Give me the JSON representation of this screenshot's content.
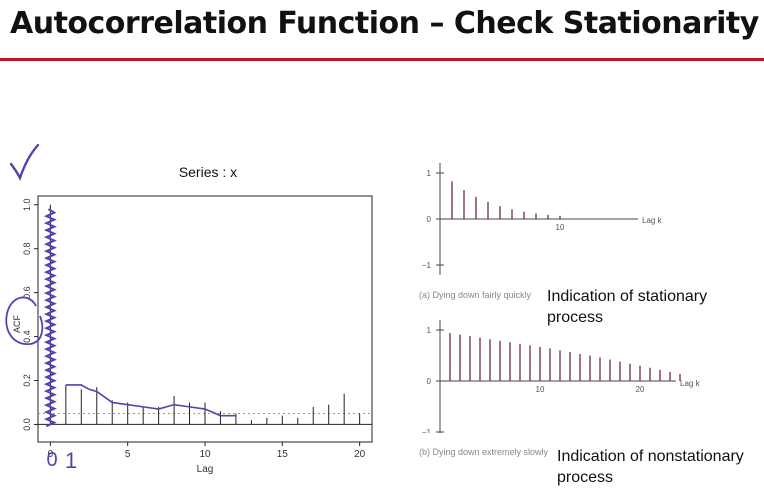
{
  "slide": {
    "title": "Autocorrelation Function – Check Stationarity",
    "accent_color": "#b5172e"
  },
  "annotations": {
    "pen_color": "#5a3fb0",
    "check_mark": "check-icon",
    "zero_label": "0",
    "one_label": "1"
  },
  "chart_data": [
    {
      "type": "bar",
      "title": "Series : x",
      "xlabel": "Lag",
      "ylabel": "ACF",
      "xlim": [
        -0.8,
        20.8
      ],
      "ylim": [
        -0.08,
        1.04
      ],
      "xticks": [
        "0",
        "5",
        "10",
        "15",
        "20"
      ],
      "yticks": [
        "0.0",
        "0.2",
        "0.4",
        "0.6",
        "0.8",
        "1.0"
      ],
      "x": [
        0,
        1,
        2,
        3,
        4,
        5,
        6,
        7,
        8,
        9,
        10,
        11,
        12,
        13,
        14,
        15,
        16,
        17,
        18,
        19,
        20
      ],
      "values": [
        1.0,
        0.18,
        0.16,
        0.17,
        0.11,
        0.1,
        0.08,
        0.08,
        0.13,
        0.1,
        0.1,
        0.06,
        0.05,
        0.02,
        0.03,
        0.04,
        0.03,
        0.08,
        0.09,
        0.14,
        0.05
      ],
      "confidence_band": 0.05,
      "grid": false
    },
    {
      "type": "bar",
      "caption": "(a) Dying down fairly quickly",
      "note": "Indication of stationary process",
      "xlabel": "Lag k",
      "yticks": [
        "1",
        "0",
        "−1"
      ],
      "xticks": [
        "10"
      ],
      "x": [
        1,
        2,
        3,
        4,
        5,
        6,
        7,
        8,
        9,
        10
      ],
      "values": [
        0.82,
        0.63,
        0.48,
        0.37,
        0.28,
        0.21,
        0.16,
        0.12,
        0.09,
        0.07
      ]
    },
    {
      "type": "bar",
      "caption": "(b) Dying down extremely slowly",
      "note": "Indication of nonstationary process",
      "xlabel": "Lag k",
      "yticks": [
        "1",
        "0",
        "−1"
      ],
      "xticks": [
        "10",
        "20"
      ],
      "x": [
        1,
        2,
        3,
        4,
        5,
        6,
        7,
        8,
        9,
        10,
        11,
        12,
        13,
        14,
        15,
        16,
        17,
        18,
        19,
        20,
        21,
        22,
        23,
        24
      ],
      "values": [
        0.94,
        0.91,
        0.88,
        0.85,
        0.82,
        0.79,
        0.76,
        0.73,
        0.7,
        0.67,
        0.64,
        0.6,
        0.57,
        0.53,
        0.5,
        0.46,
        0.42,
        0.38,
        0.34,
        0.3,
        0.26,
        0.22,
        0.18,
        0.14
      ]
    }
  ]
}
